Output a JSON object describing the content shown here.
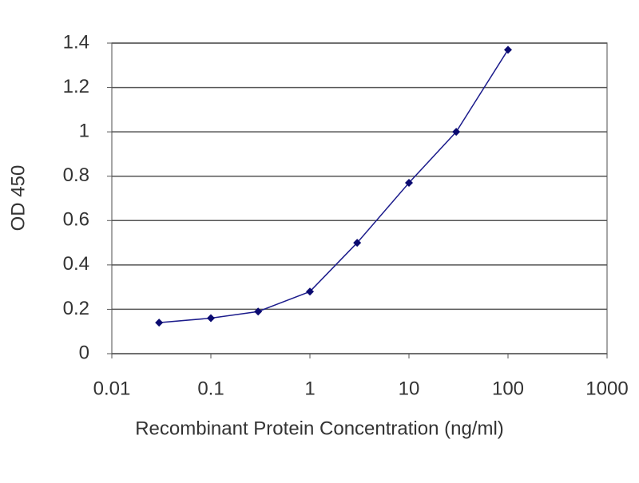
{
  "chart_data": {
    "type": "line",
    "xlabel": "Recombinant Protein Concentration (ng/ml)",
    "ylabel": "OD 450",
    "x": [
      0.03,
      0.1,
      0.3,
      1,
      3,
      10,
      30,
      100
    ],
    "series": [
      {
        "name": "OD 450",
        "color": "#1c1c8c",
        "values": [
          0.14,
          0.16,
          0.19,
          0.28,
          0.5,
          0.77,
          1.0,
          1.37
        ]
      }
    ],
    "xlim": [
      0.01,
      1000
    ],
    "xticks": [
      0.01,
      0.1,
      1,
      10,
      100,
      1000
    ],
    "ylim": [
      0,
      1.4
    ],
    "yticks": [
      0,
      0.2,
      0.4,
      0.6,
      0.8,
      1,
      1.2,
      1.4
    ],
    "log_x": true,
    "grid": true
  }
}
